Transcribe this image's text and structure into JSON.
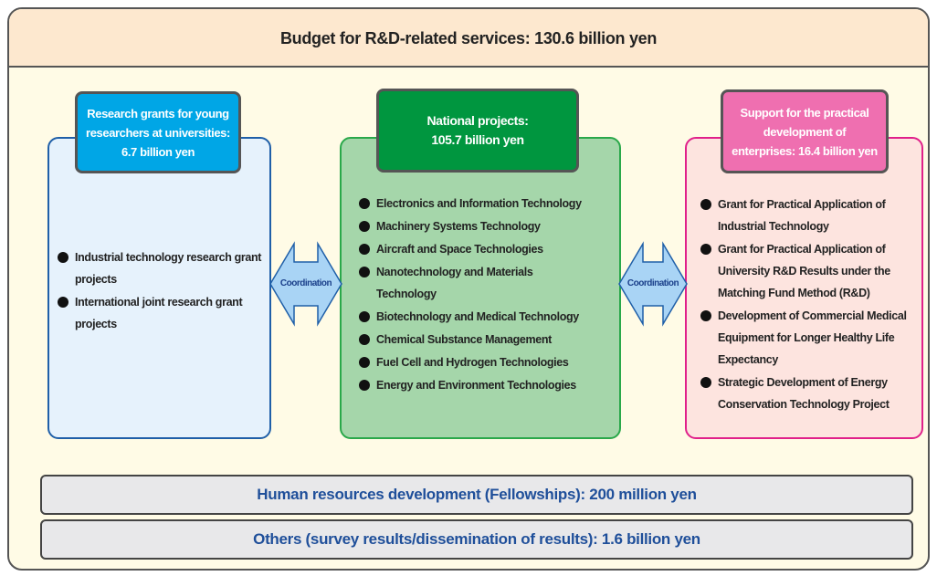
{
  "header": {
    "title": "Budget for R&D-related services: 130.6 billion yen"
  },
  "boxes": [
    {
      "title": "Research grants for young researchers at universities: 6.7 billion yen",
      "items": [
        "Industrial technology research grant projects",
        "International joint research grant projects"
      ]
    },
    {
      "title": "National projects: 105.7 billion yen",
      "items": [
        "Electronics and Information Technology",
        "Machinery Systems Technology",
        "Aircraft and Space Technologies",
        "Nanotechnology and Materials Technology",
        "Biotechnology and Medical Technology",
        "Chemical Substance Management",
        "Fuel Cell and Hydrogen Technologies",
        "Energy and Environment Technologies"
      ]
    },
    {
      "title": "Support for the practical development of enterprises: 16.4 billion yen",
      "items": [
        "Grant for Practical Application of Industrial Technology",
        "Grant for Practical Application of University R&D Results under the Matching Fund Method (R&D)",
        "Development of Commercial Medical Equipment for Longer Healthy Life Expectancy",
        "Strategic Development of Energy Conservation Technology Project"
      ]
    }
  ],
  "arrows": [
    "Coordination",
    "Coordination"
  ],
  "bars": [
    "Human resources development (Fellowships): 200 million yen",
    "Others (survey results/dissemination of results): 1.6 billion yen"
  ]
}
